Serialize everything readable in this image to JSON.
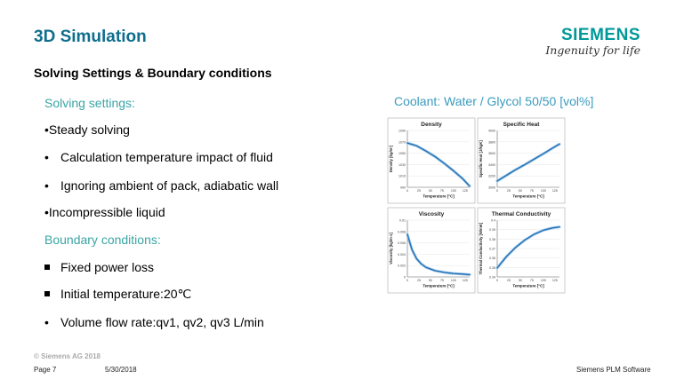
{
  "slide": {
    "title": "3D Simulation",
    "subtitle": "Solving Settings & Boundary conditions",
    "solving_header": "Solving settings:",
    "solving_items": [
      "•Steady solving",
      "Calculation temperature impact of fluid",
      "Ignoring ambient of pack, adiabatic wall",
      "•Incompressible liquid"
    ],
    "boundary_header": "Boundary conditions:",
    "boundary_items": [
      "Fixed power loss",
      "Initial temperature:20℃",
      "Volume flow rate:qv1, qv2, qv3 L/min"
    ],
    "coolant_label": "Coolant: Water / Glycol 50/50 [vol%]",
    "bullet_dot": "•"
  },
  "logo": {
    "name": "SIEMENS",
    "tagline": "Ingenuity for life"
  },
  "footer": {
    "copyright": "© Siemens AG 2018",
    "page": "Page 7",
    "date": "5/30/2018",
    "company": "Siemens PLM Software"
  },
  "colors": {
    "title": "#0f6e8e",
    "accent": "#3aa5a5",
    "curve": "#1f6fb5",
    "logo": "#009999"
  },
  "chart_data": [
    {
      "type": "line",
      "title": "Density",
      "xlabel": "Temperature [°C]",
      "ylabel": "Density [kg/m³]",
      "x_ticks": [
        "0",
        "25",
        "50",
        "75",
        "100",
        "125"
      ],
      "y_ticks": [
        "990",
        "1010",
        "1030",
        "1050",
        "1070",
        "1090"
      ],
      "xlim": [
        0,
        135
      ],
      "ylim": [
        990,
        1090
      ],
      "series": [
        {
          "x": [
            0,
            20,
            40,
            60,
            80,
            100,
            120,
            135
          ],
          "y": [
            1068,
            1063,
            1054,
            1044,
            1032,
            1019,
            1005,
            992
          ]
        }
      ]
    },
    {
      "type": "line",
      "title": "Specific Heat",
      "xlabel": "Temperature [°C]",
      "ylabel": "Specific Heat [J/kgK]",
      "x_ticks": [
        "0",
        "25",
        "50",
        "75",
        "100",
        "125"
      ],
      "y_ticks": [
        "3000",
        "3200",
        "3400",
        "3600",
        "3800",
        "4000"
      ],
      "xlim": [
        0,
        135
      ],
      "ylim": [
        3000,
        4000
      ],
      "series": [
        {
          "x": [
            0,
            20,
            40,
            60,
            80,
            100,
            120,
            135
          ],
          "y": [
            3110,
            3210,
            3310,
            3400,
            3495,
            3590,
            3690,
            3760
          ]
        }
      ]
    },
    {
      "type": "line",
      "title": "Viscosity",
      "xlabel": "Temperature [°C]",
      "ylabel": "Viscosity [kg/m·s]",
      "x_ticks": [
        "0",
        "25",
        "50",
        "75",
        "100",
        "125"
      ],
      "y_ticks": [
        "0",
        "0.002",
        "0.004",
        "0.006",
        "0.008",
        "0.01"
      ],
      "xlim": [
        0,
        135
      ],
      "ylim": [
        0,
        0.01
      ],
      "series": [
        {
          "x": [
            0,
            10,
            20,
            30,
            40,
            60,
            80,
            100,
            120,
            135
          ],
          "y": [
            0.0075,
            0.0048,
            0.0032,
            0.0023,
            0.0017,
            0.0011,
            0.0008,
            0.0006,
            0.0005,
            0.0004
          ]
        }
      ]
    },
    {
      "type": "line",
      "title": "Thermal Conductivity",
      "xlabel": "Temperature [°C]",
      "ylabel": "Thermal Conductivity [W/mK]",
      "x_ticks": [
        "0",
        "25",
        "50",
        "75",
        "100",
        "125"
      ],
      "y_ticks": [
        "0.34",
        "0.35",
        "0.36",
        "0.37",
        "0.38",
        "0.39",
        "0.4"
      ],
      "xlim": [
        0,
        135
      ],
      "ylim": [
        0.34,
        0.4
      ],
      "series": [
        {
          "x": [
            0,
            20,
            40,
            60,
            80,
            100,
            120,
            135
          ],
          "y": [
            0.3495,
            0.3615,
            0.3712,
            0.379,
            0.385,
            0.3893,
            0.3918,
            0.3928
          ]
        }
      ]
    }
  ]
}
